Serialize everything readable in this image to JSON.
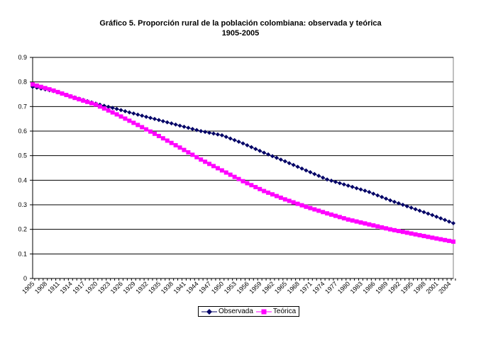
{
  "chart_data": {
    "type": "line",
    "title": "Gráfico 5. Proporción rural de la población colombiana: observada y teórica",
    "subtitle": "1905-2005",
    "xlabel": "",
    "ylabel": "",
    "ylim": [
      0,
      0.9
    ],
    "yticks": [
      "0",
      "0.1",
      "0.2",
      "0.3",
      "0.4",
      "0.5",
      "0.6",
      "0.7",
      "0.8",
      "0.9"
    ],
    "xlim": [
      1905,
      2005
    ],
    "xtick_labels": [
      "1905",
      "1908",
      "1911",
      "1914",
      "1917",
      "1920",
      "1923",
      "1926",
      "1929",
      "1932",
      "1935",
      "1938",
      "1941",
      "1944",
      "1947",
      "1950",
      "1953",
      "1956",
      "1959",
      "1962",
      "1965",
      "1968",
      "1971",
      "1974",
      "1977",
      "1980",
      "1983",
      "1986",
      "1989",
      "1992",
      "1995",
      "1998",
      "2001",
      "2004"
    ],
    "grid": true,
    "legend_position": "bottom",
    "x": [
      1905,
      1910,
      1915,
      1920,
      1925,
      1930,
      1935,
      1940,
      1945,
      1950,
      1955,
      1960,
      1965,
      1970,
      1975,
      1980,
      1985,
      1990,
      1995,
      2000,
      2005
    ],
    "series": [
      {
        "name": "Observada",
        "color": "#000066",
        "marker": "diamond",
        "values": [
          0.78,
          0.763,
          0.737,
          0.712,
          0.69,
          0.667,
          0.645,
          0.622,
          0.6,
          0.583,
          0.55,
          0.512,
          0.477,
          0.44,
          0.403,
          0.378,
          0.352,
          0.318,
          0.288,
          0.258,
          0.225
        ]
      },
      {
        "name": "Teórica",
        "color": "#ff00ff",
        "marker": "square",
        "values": [
          0.79,
          0.765,
          0.735,
          0.708,
          0.668,
          0.625,
          0.58,
          0.533,
          0.484,
          0.44,
          0.396,
          0.356,
          0.322,
          0.292,
          0.265,
          0.24,
          0.22,
          0.2,
          0.183,
          0.166,
          0.15
        ]
      }
    ]
  }
}
